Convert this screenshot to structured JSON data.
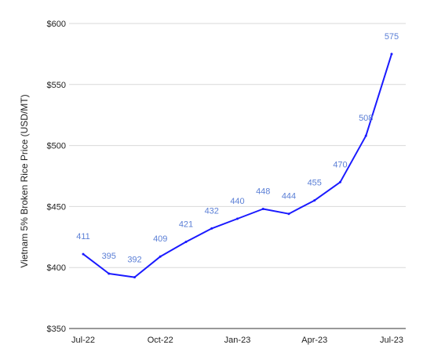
{
  "chart_data": {
    "type": "line",
    "title": "",
    "xlabel": "",
    "ylabel": "Vietnam 5% Broken Rice Price (USD/MT)",
    "x": [
      "Jul-22",
      "Aug-22",
      "Sep-22",
      "Oct-22",
      "Nov-22",
      "Dec-22",
      "Jan-23",
      "Feb-23",
      "Mar-23",
      "Apr-23",
      "May-23",
      "Jun-23",
      "Jul-23"
    ],
    "x_tick_labels": [
      "Jul-22",
      "Oct-22",
      "Jan-23",
      "Apr-23",
      "Jul-23"
    ],
    "series": [
      {
        "values": [
          411,
          395,
          392,
          409,
          421,
          432,
          440,
          448,
          444,
          455,
          470,
          508,
          575
        ]
      }
    ],
    "data_labels": [
      "411",
      "395",
      "392",
      "409",
      "421",
      "432",
      "440",
      "448",
      "444",
      "455",
      "470",
      "508",
      "575"
    ],
    "y_ticks": [
      350,
      400,
      450,
      500,
      550,
      600
    ],
    "y_tick_labels": [
      "$350",
      "$400",
      "$450",
      "$500",
      "$550",
      "$600"
    ],
    "ylim": [
      350,
      600
    ],
    "grid": true,
    "legend": "none",
    "colors": {
      "line": "#1a1aff",
      "label": "#5b7fd6",
      "grid": "#d9d9d9"
    }
  }
}
